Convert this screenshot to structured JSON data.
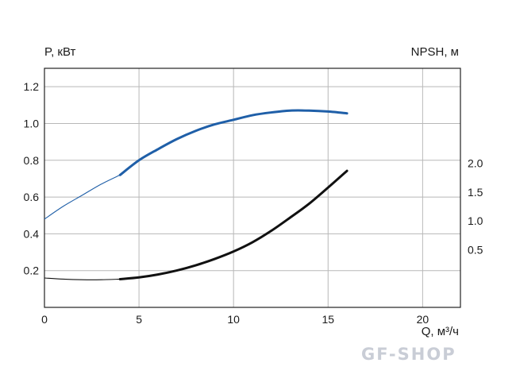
{
  "chart_data": {
    "type": "line",
    "y_left_label": "P, кВт",
    "y_right_label": "NPSH, м",
    "x_label": "Q, м³/ч",
    "xlim": [
      0,
      22
    ],
    "ylim_left": [
      0,
      1.3
    ],
    "ylim_right": [
      -0.5,
      3.65
    ],
    "x_ticks": [
      "0",
      "5",
      "10",
      "15",
      "20"
    ],
    "x_tick_values": [
      0,
      5,
      10,
      15,
      20
    ],
    "y_left_ticks": [
      "0.2",
      "0.4",
      "0.6",
      "0.8",
      "1.0",
      "1.2"
    ],
    "y_left_tick_values": [
      0.2,
      0.4,
      0.6,
      0.8,
      1.0,
      1.2
    ],
    "y_right_ticks": [
      "0.5",
      "1.0",
      "1.5",
      "2.0"
    ],
    "y_right_tick_values": [
      0.5,
      1.0,
      1.5,
      2.0
    ],
    "grid": true,
    "series": [
      {
        "axis": "left",
        "color": "#1f5fa8",
        "x": [
          0,
          1,
          2,
          3,
          4,
          5,
          6,
          7,
          8,
          9,
          10,
          11,
          12,
          13,
          14,
          15,
          16
        ],
        "values": [
          0.48,
          0.55,
          0.61,
          0.67,
          0.72,
          0.8,
          0.86,
          0.915,
          0.96,
          0.995,
          1.02,
          1.045,
          1.06,
          1.07,
          1.07,
          1.065,
          1.055
        ],
        "operating_from": 4
      },
      {
        "axis": "right",
        "color": "#111111",
        "x": [
          0,
          1,
          2,
          3,
          4,
          5,
          6,
          7,
          8,
          9,
          10,
          11,
          12,
          13,
          14,
          15,
          16
        ],
        "values": [
          0.01,
          -0.01,
          -0.02,
          -0.02,
          -0.01,
          0.02,
          0.07,
          0.14,
          0.23,
          0.34,
          0.47,
          0.63,
          0.83,
          1.06,
          1.3,
          1.58,
          1.87
        ],
        "operating_from": 4
      }
    ]
  },
  "watermark": "GF-SHOP"
}
